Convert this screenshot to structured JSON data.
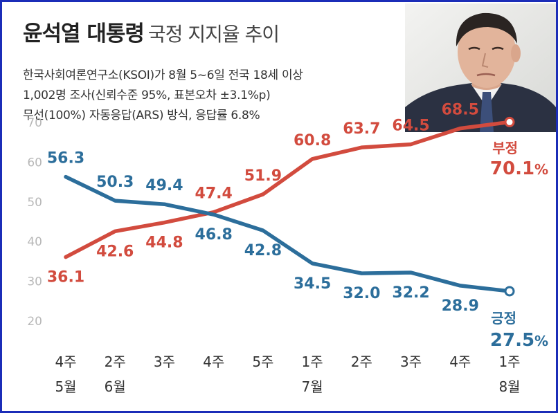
{
  "header": {
    "title_main": "윤석열 대통령",
    "title_sub": "국정 지지율 추이",
    "survey_lines": [
      "한국사회여론연구소(KSOI)가 8월 5~6일 전국 18세 이상",
      "1,002명 조사(신뢰수준 95%, 표본오차 ±3.1%p)",
      "무선(100%) 자동응답(ARS) 방식, 응답률 6.8%"
    ]
  },
  "colors": {
    "positive": "#2c6e9b",
    "negative": "#d24b3e",
    "axis_text": "#b8b8b8",
    "grid": "#e7e7e7",
    "border": "#1b2db8"
  },
  "chart_data": {
    "type": "line",
    "categories": [
      {
        "week": "4주",
        "month": "5월"
      },
      {
        "week": "2주",
        "month": "6월"
      },
      {
        "week": "3주",
        "month": ""
      },
      {
        "week": "4주",
        "month": ""
      },
      {
        "week": "5주",
        "month": ""
      },
      {
        "week": "1주",
        "month": "7월"
      },
      {
        "week": "2주",
        "month": ""
      },
      {
        "week": "3주",
        "month": ""
      },
      {
        "week": "4주",
        "month": ""
      },
      {
        "week": "1주",
        "month": "8월"
      }
    ],
    "yticks": [
      20,
      30,
      40,
      50,
      60,
      70
    ],
    "ylim": [
      15,
      75
    ],
    "grid": false,
    "series": [
      {
        "key": "positive",
        "name": "긍정",
        "values": [
          56.3,
          50.3,
          49.4,
          46.8,
          42.8,
          34.5,
          32.0,
          32.2,
          28.9,
          27.5
        ],
        "labels": [
          "56.3",
          "50.3",
          "49.4",
          "46.8",
          "42.8",
          "34.5",
          "32.0",
          "32.2",
          "28.9",
          "27.5"
        ],
        "final_label": "27.5",
        "unit": "%"
      },
      {
        "key": "negative",
        "name": "부정",
        "values": [
          36.1,
          42.6,
          44.8,
          47.4,
          51.9,
          60.8,
          63.7,
          64.5,
          68.5,
          70.1
        ],
        "labels": [
          "36.1",
          "42.6",
          "44.8",
          "47.4",
          "51.9",
          "60.8",
          "63.7",
          "64.5",
          "68.5",
          "70.1"
        ],
        "final_label": "70.1",
        "unit": "%"
      }
    ]
  }
}
